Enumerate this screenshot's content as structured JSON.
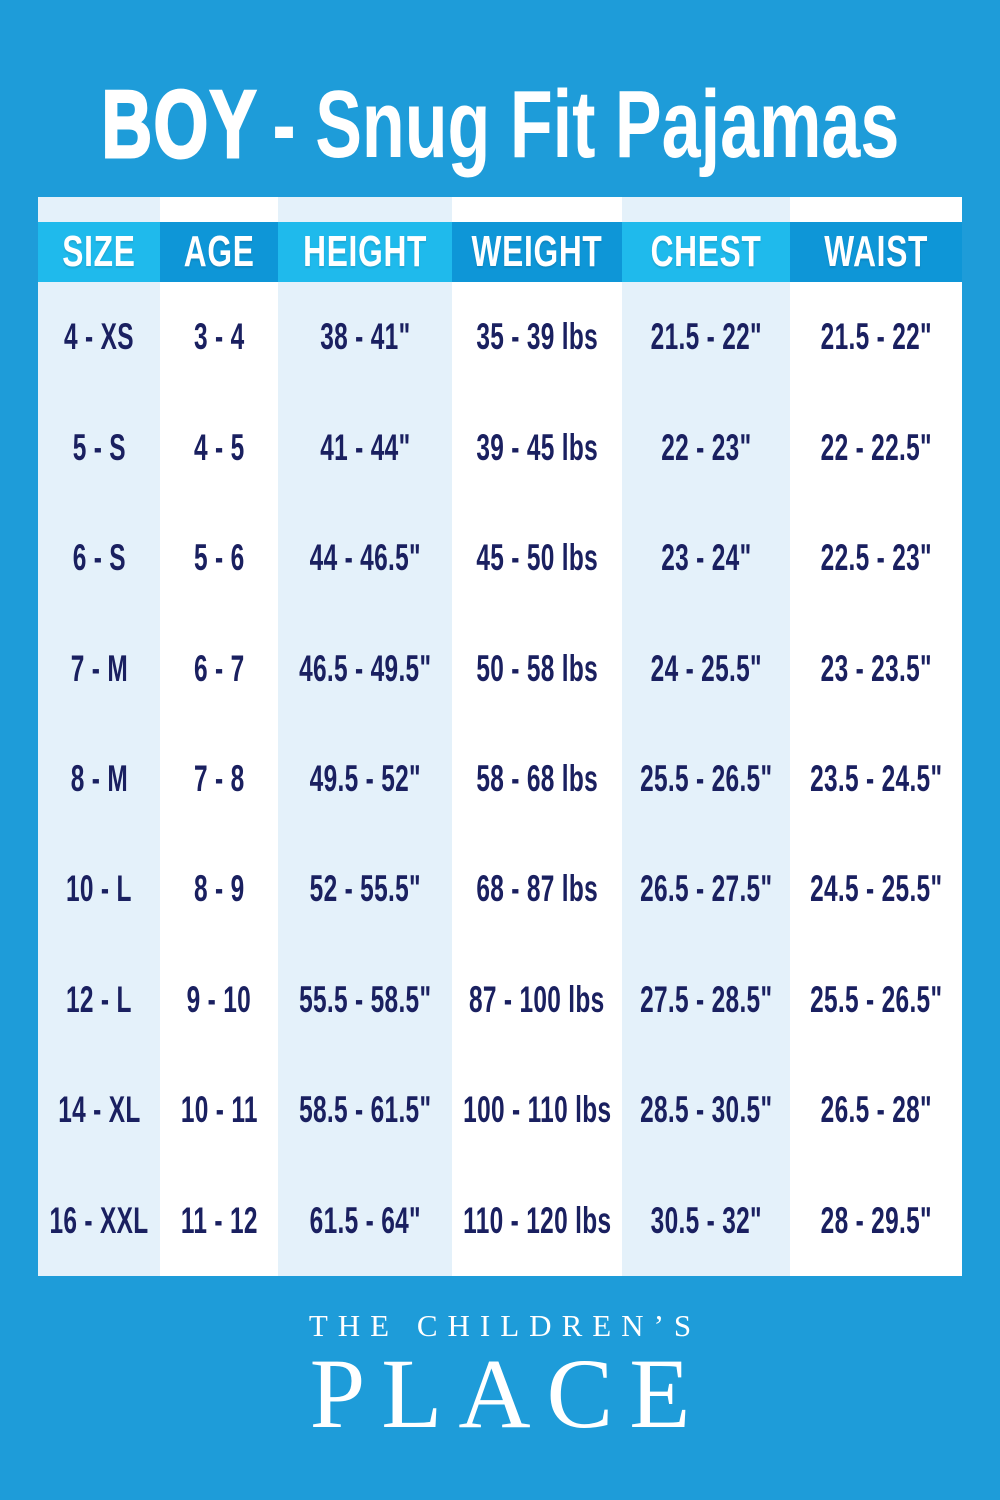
{
  "title": {
    "bold_word": "BOY",
    "rest": "- Snug Fit Pajamas",
    "full": "BOY - Snug Fit Pajamas"
  },
  "table": {
    "columns": [
      "SIZE",
      "AGE",
      "HEIGHT",
      "WEIGHT",
      "CHEST",
      "WAIST"
    ],
    "rows": [
      [
        "4 - XS",
        "3 - 4",
        "38 - 41\"",
        "35 - 39 lbs",
        "21.5 - 22\"",
        "21.5 - 22\""
      ],
      [
        "5 - S",
        "4 - 5",
        "41 - 44\"",
        "39 - 45 lbs",
        "22 - 23\"",
        "22 - 22.5\""
      ],
      [
        "6 - S",
        "5 - 6",
        "44 - 46.5\"",
        "45 - 50 lbs",
        "23 - 24\"",
        "22.5 - 23\""
      ],
      [
        "7 - M",
        "6 - 7",
        "46.5 - 49.5\"",
        "50 - 58 lbs",
        "24 - 25.5\"",
        "23 - 23.5\""
      ],
      [
        "8 - M",
        "7 - 8",
        "49.5 - 52\"",
        "58 - 68 lbs",
        "25.5 - 26.5\"",
        "23.5 - 24.5\""
      ],
      [
        "10 - L",
        "8 - 9",
        "52 - 55.5\"",
        "68 - 87 lbs",
        "26.5 - 27.5\"",
        "24.5 - 25.5\""
      ],
      [
        "12 - L",
        "9 - 10",
        "55.5 - 58.5\"",
        "87 - 100 lbs",
        "27.5 - 28.5\"",
        "25.5 - 26.5\""
      ],
      [
        "14 - XL",
        "10 - 11",
        "58.5 - 61.5\"",
        "100 - 110 lbs",
        "28.5 - 30.5\"",
        "26.5 - 28\""
      ],
      [
        "16 - XXL",
        "11 - 12",
        "61.5 - 64\"",
        "110 - 120 lbs",
        "30.5 - 32\"",
        "28 - 29.5\""
      ]
    ]
  },
  "footer": {
    "brand_line1": "THE CHILDREN’S",
    "brand_line2": "PLACE"
  },
  "colors": {
    "background": "#1E9CD9",
    "header_light": "#1FBAEC",
    "header_dark": "#0E96D7",
    "column_tint": "#E4F1FA",
    "column_white": "#FFFFFF",
    "text_navy": "#1A2060",
    "text_white": "#FFFFFF"
  }
}
